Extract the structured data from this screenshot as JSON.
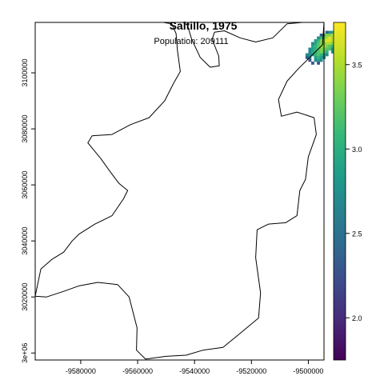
{
  "title": "Saltillo, 1975",
  "subtitle": "Population: 209111",
  "chart_data": {
    "type": "heatmap",
    "title": "Saltillo, 1975",
    "subtitle": "Population: 209111",
    "xlim": [
      -9596000,
      -9494500
    ],
    "ylim": [
      2997500,
      3118000
    ],
    "x_ticks": [
      {
        "value": -9580000,
        "label": "-9580000"
      },
      {
        "value": -9560000,
        "label": "-9560000"
      },
      {
        "value": -9540000,
        "label": "-9540000"
      },
      {
        "value": -9520000,
        "label": "-9520000"
      },
      {
        "value": -9500000,
        "label": "-9500000"
      }
    ],
    "y_ticks": [
      {
        "value": 3000000,
        "label": "3e+06"
      },
      {
        "value": 3020000,
        "label": "3020000"
      },
      {
        "value": 3040000,
        "label": "3040000"
      },
      {
        "value": 3060000,
        "label": "3060000"
      },
      {
        "value": 3080000,
        "label": "3080000"
      },
      {
        "value": 3100000,
        "label": "3100000"
      }
    ],
    "legend": {
      "placement": "right",
      "palette": "viridis",
      "range": [
        1.75,
        3.75
      ],
      "colors": [
        "#440154",
        "#482878",
        "#3e4989",
        "#31688e",
        "#26828e",
        "#1f9e89",
        "#35b779",
        "#6ece58",
        "#b5de2b",
        "#fde725"
      ],
      "ticks": [
        {
          "value": 2.0,
          "label": "2.0"
        },
        {
          "value": 2.5,
          "label": "2.5"
        },
        {
          "value": 3.0,
          "label": "3.0"
        },
        {
          "value": 3.5,
          "label": "3.5"
        }
      ]
    },
    "boundary": [
      [
        -9596000,
        3020300
      ],
      [
        -9592000,
        3020000
      ],
      [
        -9586000,
        3022000
      ],
      [
        -9580500,
        3024000
      ],
      [
        -9574000,
        3025200
      ],
      [
        -9567000,
        3024400
      ],
      [
        -9563000,
        3020000
      ],
      [
        -9560200,
        3009000
      ],
      [
        -9560400,
        3001000
      ],
      [
        -9557200,
        2997800
      ],
      [
        -9550000,
        2998800
      ],
      [
        -9543000,
        2999200
      ],
      [
        -9537000,
        3001000
      ],
      [
        -9530000,
        3002000
      ],
      [
        -9524000,
        3007000
      ],
      [
        -9517500,
        3012500
      ],
      [
        -9516800,
        3021500
      ],
      [
        -9518500,
        3034000
      ],
      [
        -9518000,
        3044000
      ],
      [
        -9514000,
        3046000
      ],
      [
        -9508000,
        3046500
      ],
      [
        -9504000,
        3049000
      ],
      [
        -9503000,
        3058000
      ],
      [
        -9501000,
        3062000
      ],
      [
        -9500000,
        3070000
      ],
      [
        -9497200,
        3078000
      ],
      [
        -9498000,
        3084000
      ],
      [
        -9504000,
        3086000
      ],
      [
        -9509500,
        3084500
      ],
      [
        -9510500,
        3090500
      ],
      [
        -9507500,
        3097000
      ],
      [
        -9503500,
        3101500
      ],
      [
        -9499000,
        3106000
      ],
      [
        -9495000,
        3110000
      ],
      [
        -9494500,
        3118000
      ],
      [
        -9497000,
        3118000
      ],
      [
        -9502000,
        3118000
      ],
      [
        -9507500,
        3117500
      ],
      [
        -9512500,
        3112500
      ],
      [
        -9518500,
        3111000
      ],
      [
        -9524000,
        3112500
      ],
      [
        -9529500,
        3115000
      ],
      [
        -9533000,
        3114500
      ],
      [
        -9533800,
        3112000
      ],
      [
        -9531500,
        3106000
      ],
      [
        -9531300,
        3102500
      ],
      [
        -9534500,
        3102000
      ],
      [
        -9538000,
        3105500
      ],
      [
        -9541000,
        3112000
      ],
      [
        -9542500,
        3117000
      ],
      [
        -9544000,
        3118000
      ],
      [
        -9562000,
        3118000
      ],
      [
        -9581000,
        3118000
      ],
      [
        -9596000,
        3118000
      ],
      [
        -9596000,
        3020300
      ]
    ],
    "inner_boundary": [
      [
        -9594000,
        3118000
      ],
      [
        -9586000,
        3118000
      ],
      [
        -9577000,
        3118000
      ],
      [
        -9566000,
        3118000
      ],
      [
        -9556000,
        3118000
      ],
      [
        -9551000,
        3118000
      ],
      [
        -9548000,
        3117500
      ],
      [
        -9546500,
        3114000
      ],
      [
        -9546000,
        3108000
      ],
      [
        -9545000,
        3100500
      ],
      [
        -9547500,
        3096000
      ],
      [
        -9550500,
        3090000
      ],
      [
        -9556000,
        3084000
      ],
      [
        -9562500,
        3081500
      ],
      [
        -9569000,
        3078000
      ],
      [
        -9576000,
        3077500
      ],
      [
        -9577500,
        3075000
      ],
      [
        -9573000,
        3069500
      ],
      [
        -9569500,
        3064500
      ],
      [
        -9566500,
        3060500
      ],
      [
        -9563500,
        3058000
      ],
      [
        -9565000,
        3055000
      ],
      [
        -9569000,
        3049000
      ],
      [
        -9575000,
        3046000
      ],
      [
        -9580500,
        3042500
      ],
      [
        -9583000,
        3040000
      ],
      [
        -9586000,
        3036000
      ],
      [
        -9590000,
        3033500
      ],
      [
        -9594000,
        3030000
      ],
      [
        -9596000,
        3020300
      ]
    ],
    "cells": {
      "grid_step": 1000,
      "x0": -9509000,
      "y_top": 3116000,
      "rows": [
        "...................d.",
        "...............abcdd.",
        ".............aeffgdcb",
        "............bdfghgfc.",
        "...........cdfghhgec.",
        "..........bceffggfd..",
        "..........cdefgfedc..",
        ".........bcdeffeeb...",
        ".........bcdefed.b...",
        "........bbcdedcb.....",
        "........ab.cdcb......",
        ".........a.bcb.......",
        "..........a.a........"
      ],
      "value_key": {
        "a": 2.3,
        "b": 2.7,
        "c": 2.9,
        "d": 3.05,
        "e": 3.2,
        "f": 3.35,
        "g": 3.5,
        "h": 3.65
      }
    }
  }
}
